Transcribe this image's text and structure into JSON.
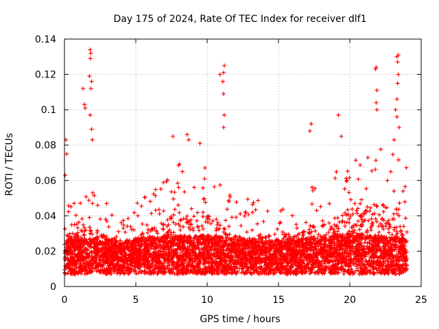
{
  "chart_data": {
    "type": "scatter",
    "title": "Day 175 of 2024, Rate Of TEC Index for receiver dlf1",
    "xlabel": "GPS time / hours",
    "ylabel": "ROTI / TECUs",
    "xlim": [
      0,
      25
    ],
    "ylim": [
      0,
      0.14
    ],
    "xticks": [
      0,
      5,
      10,
      15,
      20,
      25
    ],
    "xtick_labels": [
      "0",
      "5",
      "10",
      "15",
      "20",
      "25"
    ],
    "yticks": [
      0,
      0.02,
      0.04,
      0.06,
      0.08,
      0.1,
      0.12,
      0.14
    ],
    "ytick_labels": [
      "0",
      "0.02",
      "0.04",
      "0.06",
      "0.08",
      "0.1",
      "0.12",
      "0.14"
    ],
    "grid": true,
    "marker": "+",
    "series_color": "#ff0000",
    "data_range": {
      "x_min": 0.0,
      "x_max": 24.0
    },
    "notable_points": [
      {
        "x": 0.1,
        "y": 0.083
      },
      {
        "x": 0.15,
        "y": 0.075
      },
      {
        "x": 0.05,
        "y": 0.063
      },
      {
        "x": 1.3,
        "y": 0.112
      },
      {
        "x": 1.4,
        "y": 0.103
      },
      {
        "x": 1.45,
        "y": 0.101
      },
      {
        "x": 1.8,
        "y": 0.134
      },
      {
        "x": 1.85,
        "y": 0.132
      },
      {
        "x": 1.82,
        "y": 0.129
      },
      {
        "x": 1.75,
        "y": 0.119
      },
      {
        "x": 1.9,
        "y": 0.116
      },
      {
        "x": 1.85,
        "y": 0.112
      },
      {
        "x": 1.8,
        "y": 0.097
      },
      {
        "x": 1.9,
        "y": 0.089
      },
      {
        "x": 1.95,
        "y": 0.083
      },
      {
        "x": 7.6,
        "y": 0.085
      },
      {
        "x": 8.6,
        "y": 0.086
      },
      {
        "x": 8.7,
        "y": 0.083
      },
      {
        "x": 9.5,
        "y": 0.081
      },
      {
        "x": 10.9,
        "y": 0.12
      },
      {
        "x": 11.2,
        "y": 0.125
      },
      {
        "x": 11.15,
        "y": 0.121
      },
      {
        "x": 11.1,
        "y": 0.116
      },
      {
        "x": 11.15,
        "y": 0.109
      },
      {
        "x": 11.2,
        "y": 0.097
      },
      {
        "x": 11.15,
        "y": 0.09
      },
      {
        "x": 17.3,
        "y": 0.092
      },
      {
        "x": 17.2,
        "y": 0.088
      },
      {
        "x": 19.2,
        "y": 0.097
      },
      {
        "x": 19.4,
        "y": 0.085
      },
      {
        "x": 21.8,
        "y": 0.123
      },
      {
        "x": 21.85,
        "y": 0.124
      },
      {
        "x": 21.9,
        "y": 0.111
      },
      {
        "x": 21.85,
        "y": 0.104
      },
      {
        "x": 21.9,
        "y": 0.1
      },
      {
        "x": 23.3,
        "y": 0.13
      },
      {
        "x": 23.4,
        "y": 0.131
      },
      {
        "x": 23.35,
        "y": 0.127
      },
      {
        "x": 23.4,
        "y": 0.12
      },
      {
        "x": 23.35,
        "y": 0.115
      },
      {
        "x": 23.3,
        "y": 0.106
      },
      {
        "x": 23.2,
        "y": 0.1
      },
      {
        "x": 23.3,
        "y": 0.096
      },
      {
        "x": 23.45,
        "y": 0.09
      },
      {
        "x": 23.1,
        "y": 0.083
      }
    ],
    "background_profile": {
      "description_hours": [
        0,
        2,
        4,
        6,
        8,
        10,
        12,
        14,
        16,
        18,
        20,
        22,
        24
      ],
      "typical_base": [
        0.015,
        0.015,
        0.014,
        0.016,
        0.017,
        0.017,
        0.015,
        0.014,
        0.015,
        0.016,
        0.018,
        0.017,
        0.015
      ],
      "typical_spread_max": [
        0.05,
        0.055,
        0.04,
        0.055,
        0.07,
        0.07,
        0.05,
        0.05,
        0.05,
        0.06,
        0.07,
        0.08,
        0.07
      ]
    }
  }
}
